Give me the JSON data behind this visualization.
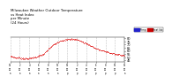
{
  "title": "Milwaukee Weather Outdoor Temperature\nvs Heat Index\nper Minute\n(24 Hours)",
  "title_fontsize": 2.8,
  "background_color": "#ffffff",
  "dot_color": "#dd0000",
  "ylim": [
    43,
    82
  ],
  "xlim": [
    0,
    1440
  ],
  "yticks": [
    45,
    50,
    55,
    60,
    65,
    70,
    75,
    80
  ],
  "ytick_labels": [
    "45",
    "50",
    "55",
    "60",
    "65",
    "70",
    "75",
    "80"
  ],
  "legend_blue": "#2222cc",
  "legend_red": "#cc0000",
  "legend_blue_label": "Temp",
  "legend_red_label": "Heat Idx",
  "curve_points_x": [
    0,
    60,
    120,
    180,
    240,
    300,
    360,
    420,
    480,
    540,
    600,
    660,
    720,
    780,
    840,
    900,
    960,
    1020,
    1080,
    1140,
    1200,
    1260,
    1320,
    1380,
    1440
  ],
  "curve_points_y": [
    52,
    50,
    49,
    48,
    48,
    50,
    52,
    55,
    63,
    70,
    74,
    77,
    79,
    79,
    78,
    75,
    72,
    68,
    64,
    61,
    59,
    57,
    55,
    54,
    53
  ],
  "xtick_minutes": [
    0,
    120,
    240,
    360,
    480,
    600,
    720,
    840,
    960,
    1080,
    1200,
    1320,
    1440
  ],
  "xtick_labels": [
    "12\n00\na",
    "2\n00\na",
    "4\n00\na",
    "6\n00\na",
    "8\n00\na",
    "10\n00\na",
    "12\n00\np",
    "2\n00\np",
    "4\n00\np",
    "6\n00\np",
    "8\n00\np",
    "10\n00\np",
    "12\n00\na"
  ]
}
